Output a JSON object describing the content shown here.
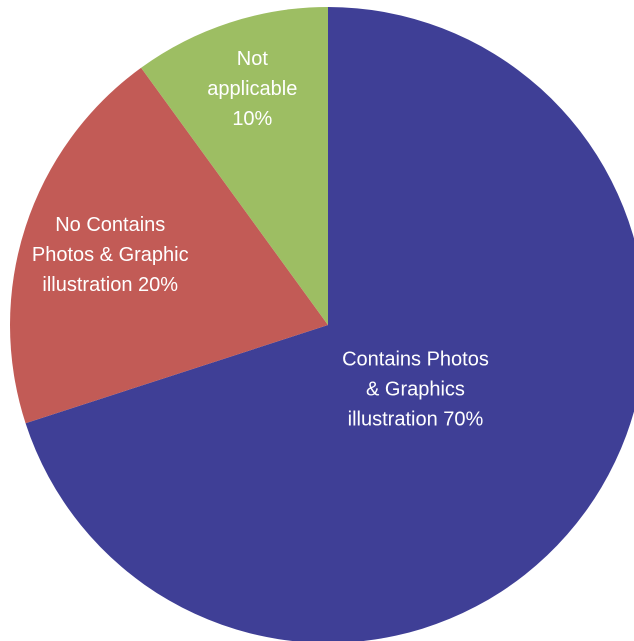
{
  "chart_data": {
    "type": "pie",
    "title": "",
    "start": "12 o'clock",
    "direction": "clockwise",
    "slices": [
      {
        "label_lines": [
          "Contains Photos",
          "& Graphics",
          "illustration 70%"
        ],
        "value": 70,
        "color": "#3F3F96"
      },
      {
        "label_lines": [
          "No Contains",
          "Photos & Graphic",
          "illustration 20%"
        ],
        "value": 20,
        "color": "#C25B56"
      },
      {
        "label_lines": [
          "Not",
          "applicable",
          "10%"
        ],
        "value": 10,
        "color": "#9DBE63"
      }
    ]
  }
}
